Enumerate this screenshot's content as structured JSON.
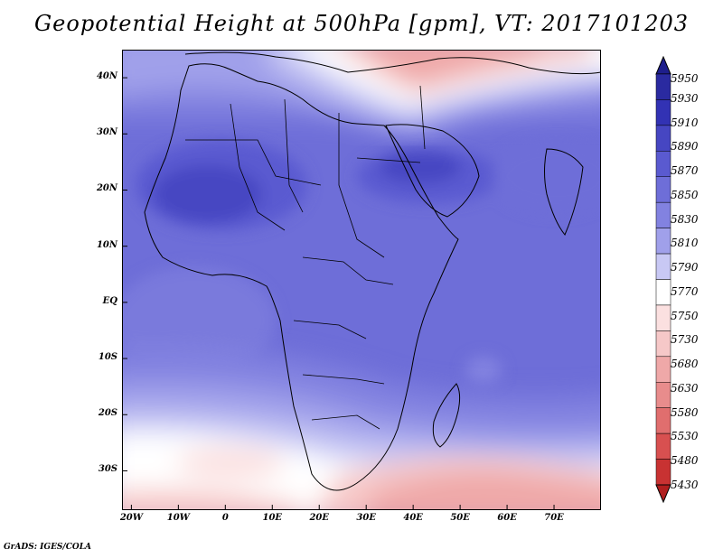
{
  "title": "Geopotential Height at 500hPa [gpm], VT: 2017101203",
  "footer": "GrADS: IGES/COLA",
  "axes": {
    "y_ticks": [
      {
        "label": "40N",
        "lat": 40
      },
      {
        "label": "30N",
        "lat": 30
      },
      {
        "label": "20N",
        "lat": 20
      },
      {
        "label": "10N",
        "lat": 10
      },
      {
        "label": "EQ",
        "lat": 0
      },
      {
        "label": "10S",
        "lat": -10
      },
      {
        "label": "20S",
        "lat": -20
      },
      {
        "label": "30S",
        "lat": -30
      }
    ],
    "x_ticks": [
      {
        "label": "20W",
        "lon": -20
      },
      {
        "label": "10W",
        "lon": -10
      },
      {
        "label": "0",
        "lon": 0
      },
      {
        "label": "10E",
        "lon": 10
      },
      {
        "label": "20E",
        "lon": 20
      },
      {
        "label": "30E",
        "lon": 30
      },
      {
        "label": "40E",
        "lon": 40
      },
      {
        "label": "50E",
        "lon": 50
      },
      {
        "label": "60E",
        "lon": 60
      },
      {
        "label": "70E",
        "lon": 70
      }
    ],
    "lon_range": [
      -22,
      80
    ],
    "lat_range": [
      -37,
      45
    ]
  },
  "legend": {
    "levels": [
      {
        "label": "5950",
        "color": "#1e1e8c"
      },
      {
        "label": "5930",
        "color": "#2a2aa0"
      },
      {
        "label": "5910",
        "color": "#3232b4"
      },
      {
        "label": "5890",
        "color": "#4646c2"
      },
      {
        "label": "5870",
        "color": "#5a5ad0"
      },
      {
        "label": "5850",
        "color": "#6e6ed8"
      },
      {
        "label": "5830",
        "color": "#8282e0"
      },
      {
        "label": "5810",
        "color": "#a0a0ea"
      },
      {
        "label": "5790",
        "color": "#c8c8f4"
      },
      {
        "label": "5770",
        "color": "#ffffff"
      },
      {
        "label": "5750",
        "color": "#fbe0e0"
      },
      {
        "label": "5730",
        "color": "#f6c8c8"
      },
      {
        "label": "5680",
        "color": "#efa8a8"
      },
      {
        "label": "5630",
        "color": "#e88c8c"
      },
      {
        "label": "5580",
        "color": "#e06e6e"
      },
      {
        "label": "5530",
        "color": "#d85050"
      },
      {
        "label": "5480",
        "color": "#c83232"
      },
      {
        "label": "5430",
        "color": "#b01e1e"
      }
    ]
  }
}
